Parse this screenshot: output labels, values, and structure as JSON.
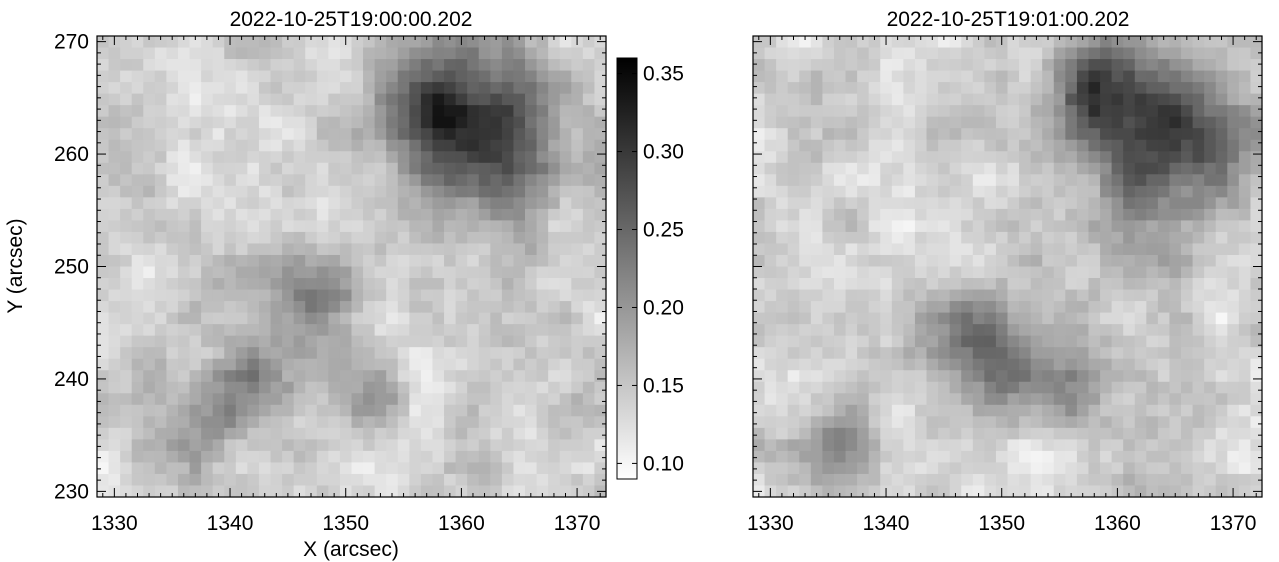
{
  "chart_data": [
    {
      "type": "heatmap",
      "title": "2022-10-25T19:00:00.202",
      "xlabel": "X (arcsec)",
      "ylabel": "Y (arcsec)",
      "xlim": [
        1328.5,
        1372.5
      ],
      "ylim": [
        229.5,
        270.5
      ],
      "x_ticks": [
        1330,
        1340,
        1350,
        1360,
        1370
      ],
      "y_ticks": [
        230,
        240,
        250,
        260,
        270
      ],
      "colormap": "gray_reversed",
      "dark_regions": [
        {
          "x": 1362,
          "y": 262,
          "strength": 0.9,
          "radius": 7
        },
        {
          "x": 1357,
          "y": 265,
          "strength": 0.7,
          "radius": 4
        },
        {
          "x": 1347,
          "y": 247,
          "strength": 0.55,
          "radius": 4
        },
        {
          "x": 1342,
          "y": 240,
          "strength": 0.45,
          "radius": 3.5
        },
        {
          "x": 1338,
          "y": 236,
          "strength": 0.4,
          "radius": 3.5
        },
        {
          "x": 1352,
          "y": 238,
          "strength": 0.35,
          "radius": 3
        }
      ]
    },
    {
      "type": "heatmap",
      "title": "2022-10-25T19:01:00.202",
      "xlim": [
        1328.5,
        1372.5
      ],
      "ylim": [
        229.5,
        270.5
      ],
      "x_ticks": [
        1330,
        1340,
        1350,
        1360,
        1370
      ],
      "y_ticks": [
        230,
        240,
        250,
        260,
        270
      ],
      "colormap": "gray_reversed",
      "dark_regions": [
        {
          "x": 1364,
          "y": 261,
          "strength": 0.95,
          "radius": 7
        },
        {
          "x": 1359,
          "y": 266,
          "strength": 0.7,
          "radius": 4
        },
        {
          "x": 1346,
          "y": 245,
          "strength": 0.55,
          "radius": 4
        },
        {
          "x": 1350,
          "y": 241,
          "strength": 0.5,
          "radius": 3.5
        },
        {
          "x": 1336,
          "y": 234,
          "strength": 0.45,
          "radius": 3.5
        },
        {
          "x": 1356,
          "y": 239,
          "strength": 0.35,
          "radius": 3
        }
      ]
    }
  ],
  "colorbar": {
    "range": [
      0.09,
      0.36
    ],
    "ticks": [
      "0.35",
      "0.30",
      "0.25",
      "0.20",
      "0.15",
      "0.10"
    ],
    "tick_values": [
      0.35,
      0.3,
      0.25,
      0.2,
      0.15,
      0.1
    ]
  }
}
